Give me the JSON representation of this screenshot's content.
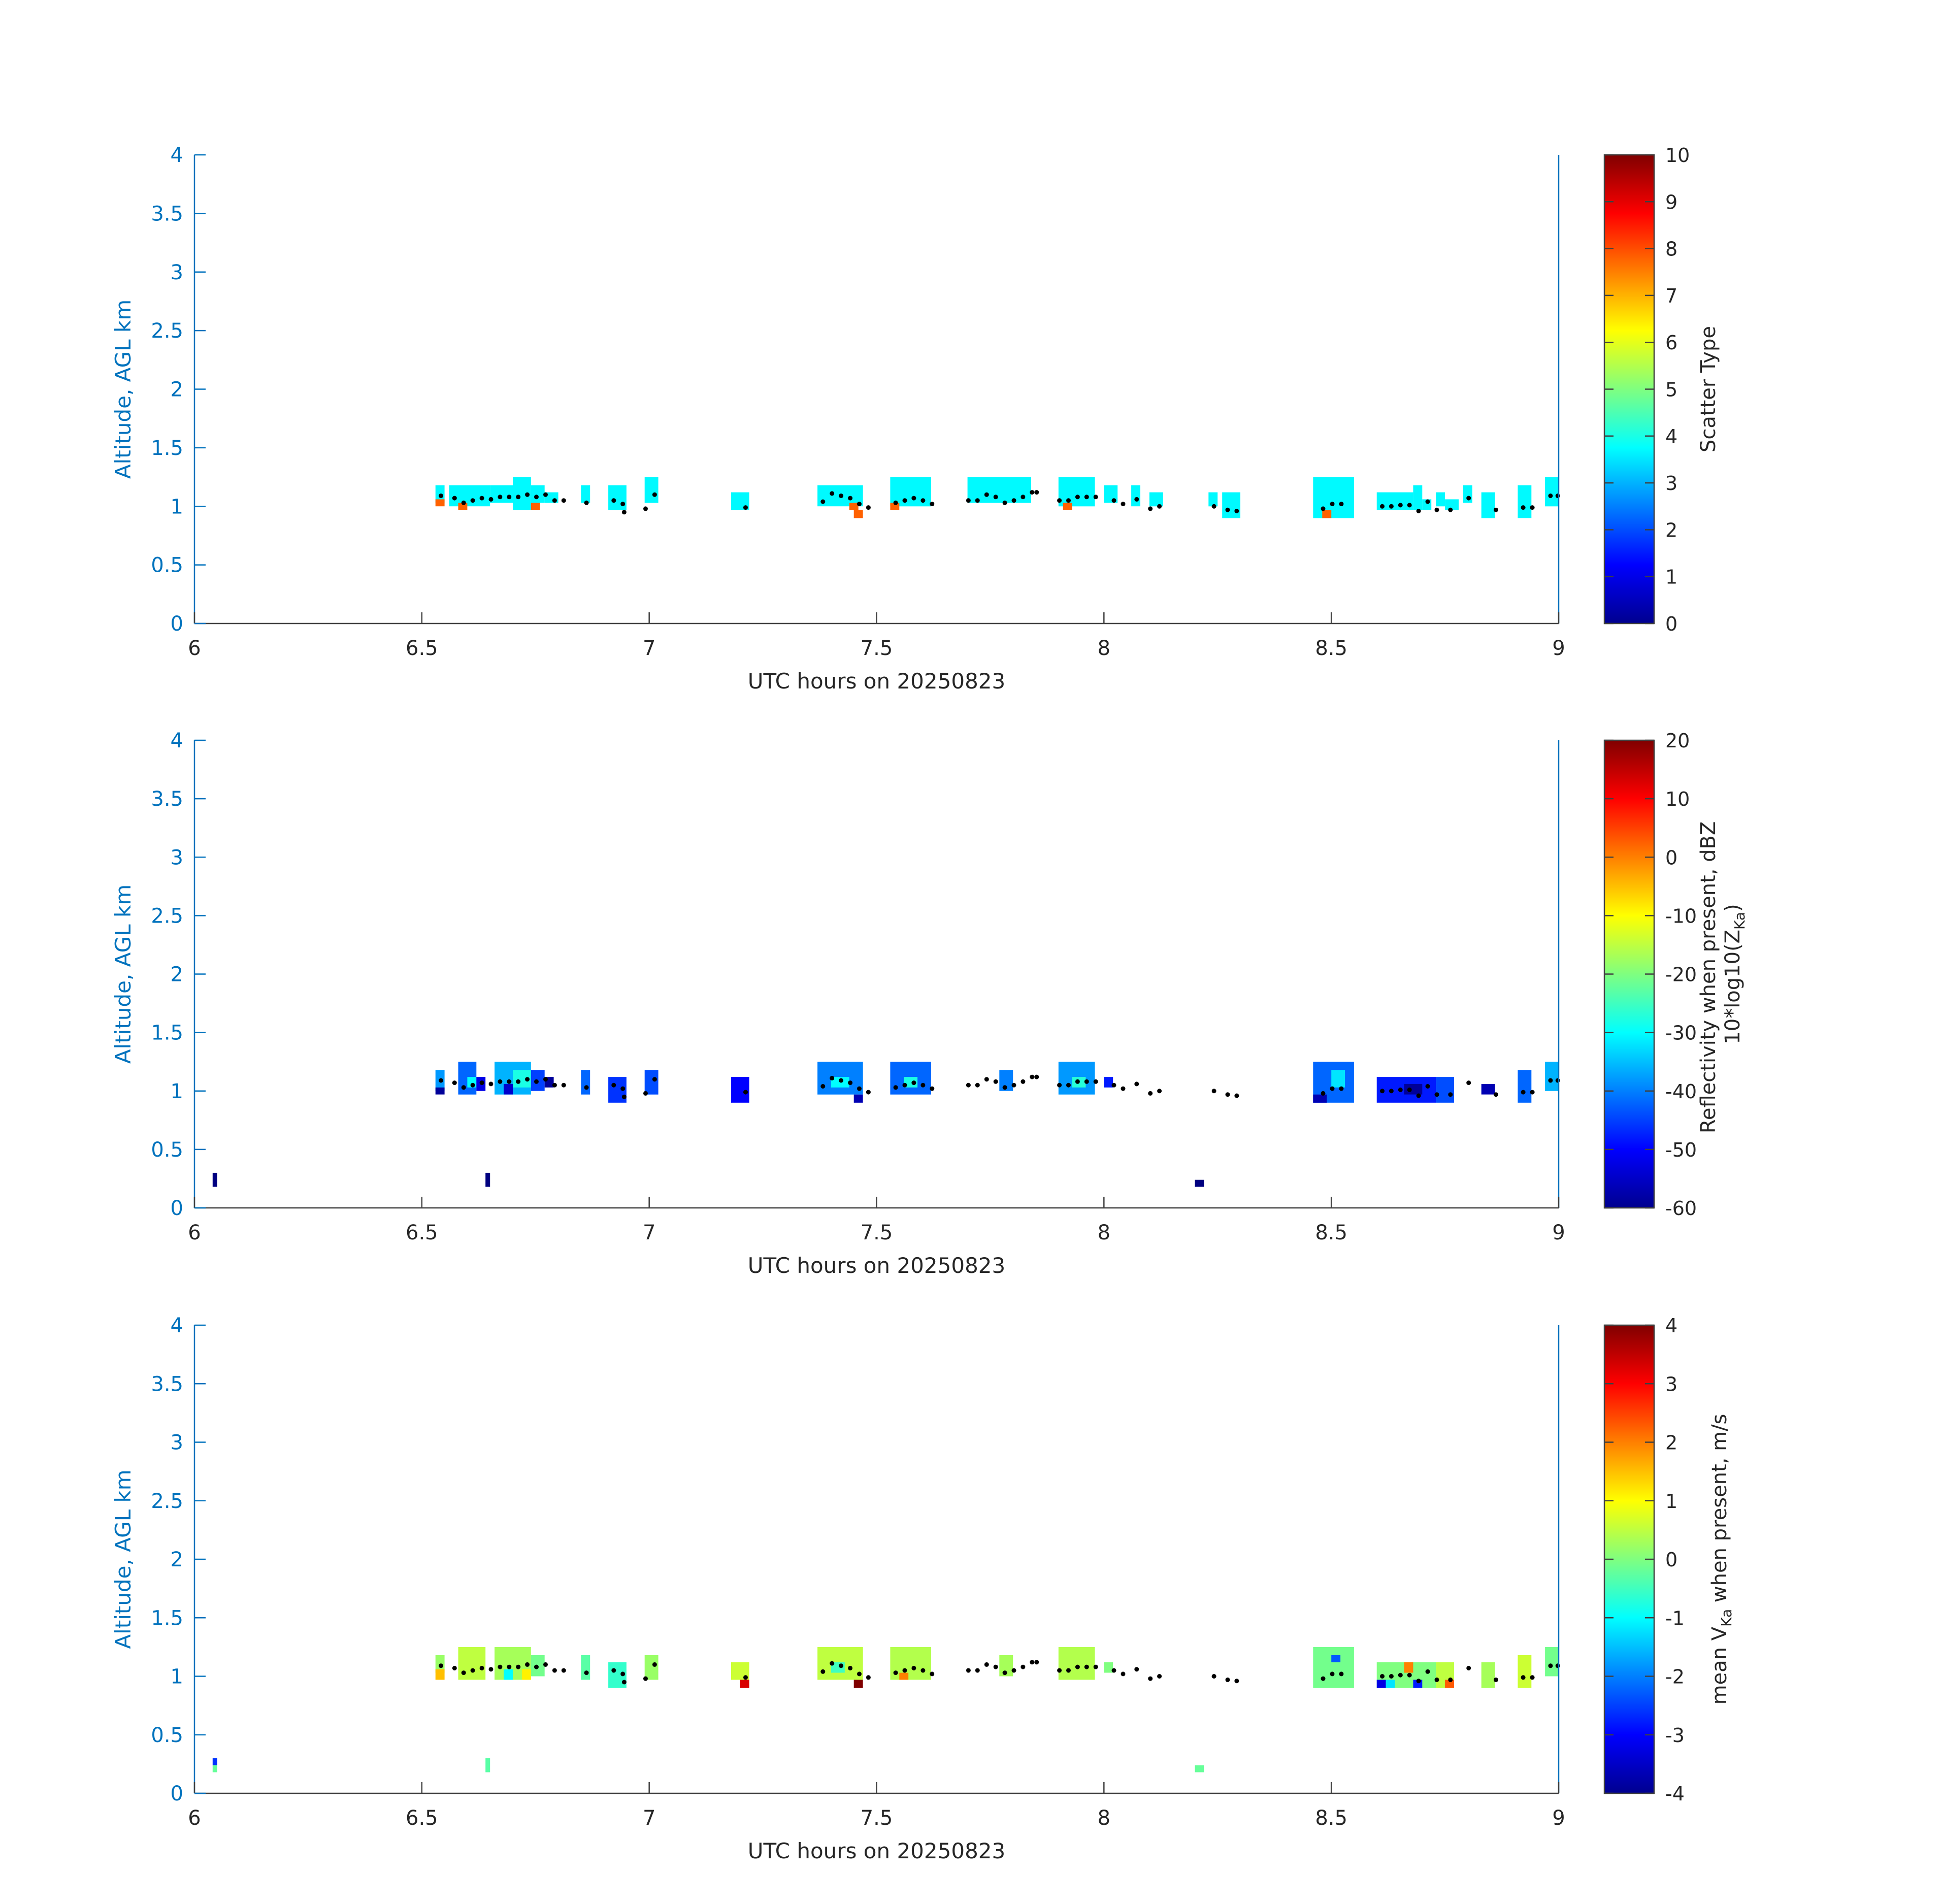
{
  "figure": {
    "panel_count": 3
  },
  "chart_data": [
    {
      "type": "heatmap",
      "title": "",
      "xlabel": "UTC hours on 20250823",
      "ylabel": "Altitude, AGL km",
      "xlim": [
        6,
        9
      ],
      "ylim": [
        0,
        4
      ],
      "xticks": [
        "6",
        "6.5",
        "7",
        "7.5",
        "8",
        "8.5",
        "9"
      ],
      "yticks": [
        "0",
        "0.5",
        "1",
        "1.5",
        "2",
        "2.5",
        "3",
        "3.5",
        "4"
      ],
      "colorbar": {
        "label_lines": [
          "Scatter Type"
        ],
        "range": [
          0,
          10
        ],
        "ticks": [
          "0",
          "1",
          "2",
          "3",
          "4",
          "5",
          "6",
          "7",
          "8",
          "9",
          "10"
        ]
      },
      "cells": [
        {
          "t0": 6.53,
          "t1": 6.55,
          "z0": 1.03,
          "z1": 1.18,
          "v": 3.7
        },
        {
          "t0": 6.53,
          "t1": 6.55,
          "z0": 1.0,
          "z1": 1.06,
          "v": 7.8
        },
        {
          "t0": 6.56,
          "t1": 6.65,
          "z0": 1.0,
          "z1": 1.18,
          "v": 3.7
        },
        {
          "t0": 6.58,
          "t1": 6.6,
          "z0": 0.97,
          "z1": 1.03,
          "v": 7.8
        },
        {
          "t0": 6.65,
          "t1": 6.72,
          "z0": 1.03,
          "z1": 1.18,
          "v": 3.7
        },
        {
          "t0": 6.7,
          "t1": 6.74,
          "z0": 0.97,
          "z1": 1.25,
          "v": 3.7
        },
        {
          "t0": 6.74,
          "t1": 6.77,
          "z0": 1.03,
          "z1": 1.18,
          "v": 3.7
        },
        {
          "t0": 6.74,
          "t1": 6.76,
          "z0": 0.97,
          "z1": 1.03,
          "v": 7.8
        },
        {
          "t0": 6.77,
          "t1": 6.8,
          "z0": 1.03,
          "z1": 1.12,
          "v": 3.7
        },
        {
          "t0": 6.85,
          "t1": 6.87,
          "z0": 1.03,
          "z1": 1.18,
          "v": 3.7
        },
        {
          "t0": 6.91,
          "t1": 6.95,
          "z0": 0.97,
          "z1": 1.18,
          "v": 3.7
        },
        {
          "t0": 6.99,
          "t1": 7.02,
          "z0": 1.03,
          "z1": 1.25,
          "v": 3.7
        },
        {
          "t0": 7.18,
          "t1": 7.22,
          "z0": 0.97,
          "z1": 1.12,
          "v": 3.7
        },
        {
          "t0": 7.37,
          "t1": 7.47,
          "z0": 1.0,
          "z1": 1.18,
          "v": 3.7
        },
        {
          "t0": 7.44,
          "t1": 7.46,
          "z0": 0.97,
          "z1": 1.03,
          "v": 7.8
        },
        {
          "t0": 7.45,
          "t1": 7.47,
          "z0": 0.9,
          "z1": 0.97,
          "v": 7.8
        },
        {
          "t0": 7.53,
          "t1": 7.62,
          "z0": 1.0,
          "z1": 1.25,
          "v": 3.7
        },
        {
          "t0": 7.53,
          "t1": 7.55,
          "z0": 0.97,
          "z1": 1.03,
          "v": 7.8
        },
        {
          "t0": 7.7,
          "t1": 7.84,
          "z0": 1.03,
          "z1": 1.25,
          "v": 3.7
        },
        {
          "t0": 7.9,
          "t1": 7.98,
          "z0": 1.0,
          "z1": 1.25,
          "v": 3.7
        },
        {
          "t0": 7.91,
          "t1": 7.93,
          "z0": 0.97,
          "z1": 1.03,
          "v": 7.8
        },
        {
          "t0": 8.0,
          "t1": 8.03,
          "z0": 1.03,
          "z1": 1.18,
          "v": 3.7
        },
        {
          "t0": 8.06,
          "t1": 8.08,
          "z0": 1.0,
          "z1": 1.18,
          "v": 3.7
        },
        {
          "t0": 8.1,
          "t1": 8.13,
          "z0": 1.0,
          "z1": 1.12,
          "v": 3.7
        },
        {
          "t0": 8.23,
          "t1": 8.25,
          "z0": 1.0,
          "z1": 1.12,
          "v": 3.7
        },
        {
          "t0": 8.26,
          "t1": 8.3,
          "z0": 0.9,
          "z1": 1.12,
          "v": 3.7
        },
        {
          "t0": 8.46,
          "t1": 8.55,
          "z0": 0.9,
          "z1": 1.25,
          "v": 3.7
        },
        {
          "t0": 8.48,
          "t1": 8.5,
          "z0": 0.9,
          "z1": 0.97,
          "v": 7.8
        },
        {
          "t0": 8.6,
          "t1": 8.68,
          "z0": 0.97,
          "z1": 1.12,
          "v": 3.7
        },
        {
          "t0": 8.68,
          "t1": 8.7,
          "z0": 0.97,
          "z1": 1.18,
          "v": 3.7
        },
        {
          "t0": 8.7,
          "t1": 8.72,
          "z0": 0.97,
          "z1": 1.06,
          "v": 3.7
        },
        {
          "t0": 8.73,
          "t1": 8.75,
          "z0": 1.0,
          "z1": 1.12,
          "v": 3.7
        },
        {
          "t0": 8.75,
          "t1": 8.78,
          "z0": 0.97,
          "z1": 1.06,
          "v": 3.7
        },
        {
          "t0": 8.79,
          "t1": 8.81,
          "z0": 1.03,
          "z1": 1.18,
          "v": 3.7
        },
        {
          "t0": 8.83,
          "t1": 8.86,
          "z0": 0.9,
          "z1": 1.12,
          "v": 3.7
        },
        {
          "t0": 8.91,
          "t1": 8.94,
          "z0": 0.9,
          "z1": 1.18,
          "v": 3.7
        },
        {
          "t0": 8.97,
          "t1": 9.0,
          "z0": 1.0,
          "z1": 1.25,
          "v": 3.7
        }
      ]
    },
    {
      "type": "heatmap",
      "title": "",
      "xlabel": "UTC hours on 20250823",
      "ylabel": "Altitude, AGL km",
      "xlim": [
        6,
        9
      ],
      "ylim": [
        0,
        4
      ],
      "xticks": [
        "6",
        "6.5",
        "7",
        "7.5",
        "8",
        "8.5",
        "9"
      ],
      "yticks": [
        "0",
        "0.5",
        "1",
        "1.5",
        "2",
        "2.5",
        "3",
        "3.5",
        "4"
      ],
      "colorbar": {
        "label_lines": [
          "Reflectivity when present, dBZ",
          "10*log10(Z",
          "Ka",
          ")"
        ],
        "range": [
          -60,
          20
        ],
        "ticks": [
          "-60",
          "-50",
          "-40",
          "-30",
          "-20",
          "-10",
          "0",
          "10",
          "20"
        ]
      },
      "cells": [
        {
          "t0": 6.04,
          "t1": 6.05,
          "z0": 0.18,
          "z1": 0.3,
          "v": -60
        },
        {
          "t0": 6.64,
          "t1": 6.65,
          "z0": 0.18,
          "z1": 0.3,
          "v": -60
        },
        {
          "t0": 8.2,
          "t1": 8.22,
          "z0": 0.18,
          "z1": 0.24,
          "v": -60
        },
        {
          "t0": 6.53,
          "t1": 6.55,
          "z0": 1.0,
          "z1": 1.18,
          "v": -38
        },
        {
          "t0": 6.53,
          "t1": 6.55,
          "z0": 0.97,
          "z1": 1.03,
          "v": -58
        },
        {
          "t0": 6.58,
          "t1": 6.62,
          "z0": 0.97,
          "z1": 1.25,
          "v": -42
        },
        {
          "t0": 6.6,
          "t1": 6.62,
          "z0": 1.03,
          "z1": 1.12,
          "v": -30
        },
        {
          "t0": 6.62,
          "t1": 6.64,
          "z0": 1.0,
          "z1": 1.12,
          "v": -52
        },
        {
          "t0": 6.66,
          "t1": 6.74,
          "z0": 0.97,
          "z1": 1.25,
          "v": -36
        },
        {
          "t0": 6.68,
          "t1": 6.7,
          "z0": 0.97,
          "z1": 1.06,
          "v": -54
        },
        {
          "t0": 6.7,
          "t1": 6.74,
          "z0": 1.03,
          "z1": 1.18,
          "v": -28
        },
        {
          "t0": 6.74,
          "t1": 6.77,
          "z0": 1.0,
          "z1": 1.18,
          "v": -45
        },
        {
          "t0": 6.77,
          "t1": 6.79,
          "z0": 1.03,
          "z1": 1.12,
          "v": -58
        },
        {
          "t0": 6.85,
          "t1": 6.87,
          "z0": 0.97,
          "z1": 1.18,
          "v": -42
        },
        {
          "t0": 6.91,
          "t1": 6.95,
          "z0": 0.9,
          "z1": 1.12,
          "v": -46
        },
        {
          "t0": 6.99,
          "t1": 7.02,
          "z0": 0.97,
          "z1": 1.18,
          "v": -44
        },
        {
          "t0": 7.18,
          "t1": 7.22,
          "z0": 0.9,
          "z1": 1.12,
          "v": -50
        },
        {
          "t0": 7.37,
          "t1": 7.47,
          "z0": 0.97,
          "z1": 1.25,
          "v": -40
        },
        {
          "t0": 7.4,
          "t1": 7.44,
          "z0": 1.03,
          "z1": 1.12,
          "v": -30
        },
        {
          "t0": 7.45,
          "t1": 7.47,
          "z0": 0.9,
          "z1": 0.97,
          "v": -56
        },
        {
          "t0": 7.53,
          "t1": 7.62,
          "z0": 0.97,
          "z1": 1.25,
          "v": -42
        },
        {
          "t0": 7.56,
          "t1": 7.59,
          "z0": 1.03,
          "z1": 1.12,
          "v": -28
        },
        {
          "t0": 7.77,
          "t1": 7.8,
          "z0": 1.0,
          "z1": 1.18,
          "v": -40
        },
        {
          "t0": 7.9,
          "t1": 7.98,
          "z0": 0.97,
          "z1": 1.25,
          "v": -38
        },
        {
          "t0": 7.93,
          "t1": 7.96,
          "z0": 1.03,
          "z1": 1.12,
          "v": -27
        },
        {
          "t0": 8.0,
          "t1": 8.02,
          "z0": 1.03,
          "z1": 1.12,
          "v": -48
        },
        {
          "t0": 8.46,
          "t1": 8.55,
          "z0": 0.9,
          "z1": 1.25,
          "v": -42
        },
        {
          "t0": 8.5,
          "t1": 8.53,
          "z0": 1.03,
          "z1": 1.18,
          "v": -32
        },
        {
          "t0": 8.46,
          "t1": 8.49,
          "z0": 0.9,
          "z1": 0.97,
          "v": -56
        },
        {
          "t0": 8.6,
          "t1": 8.73,
          "z0": 0.9,
          "z1": 1.12,
          "v": -48
        },
        {
          "t0": 8.66,
          "t1": 8.7,
          "z0": 0.97,
          "z1": 1.06,
          "v": -58
        },
        {
          "t0": 8.73,
          "t1": 8.77,
          "z0": 0.9,
          "z1": 1.12,
          "v": -44
        },
        {
          "t0": 8.83,
          "t1": 8.86,
          "z0": 0.97,
          "z1": 1.06,
          "v": -56
        },
        {
          "t0": 8.91,
          "t1": 8.94,
          "z0": 0.9,
          "z1": 1.18,
          "v": -42
        },
        {
          "t0": 8.97,
          "t1": 9.0,
          "z0": 1.0,
          "z1": 1.25,
          "v": -36
        }
      ]
    },
    {
      "type": "heatmap",
      "title": "",
      "xlabel": "UTC hours on 20250823",
      "ylabel": "Altitude, AGL km",
      "xlim": [
        6,
        9
      ],
      "ylim": [
        0,
        4
      ],
      "xticks": [
        "6",
        "6.5",
        "7",
        "7.5",
        "8",
        "8.5",
        "9"
      ],
      "yticks": [
        "0",
        "0.5",
        "1",
        "1.5",
        "2",
        "2.5",
        "3",
        "3.5",
        "4"
      ],
      "colorbar": {
        "label_lines": [
          "mean V",
          "Ka",
          " when present, m/s"
        ],
        "range": [
          -4,
          4
        ],
        "ticks": [
          "-4",
          "-3",
          "-2",
          "-1",
          "0",
          "1",
          "2",
          "3",
          "4"
        ]
      },
      "cells": [
        {
          "t0": 6.04,
          "t1": 6.05,
          "z0": 0.24,
          "z1": 0.3,
          "v": -2.6
        },
        {
          "t0": 6.04,
          "t1": 6.05,
          "z0": 0.18,
          "z1": 0.24,
          "v": -0.2
        },
        {
          "t0": 6.64,
          "t1": 6.65,
          "z0": 0.18,
          "z1": 0.3,
          "v": -0.3
        },
        {
          "t0": 8.2,
          "t1": 8.22,
          "z0": 0.18,
          "z1": 0.24,
          "v": -0.2
        },
        {
          "t0": 6.53,
          "t1": 6.55,
          "z0": 1.03,
          "z1": 1.18,
          "v": 0.2
        },
        {
          "t0": 6.53,
          "t1": 6.55,
          "z0": 0.97,
          "z1": 1.06,
          "v": 1.5
        },
        {
          "t0": 6.58,
          "t1": 6.64,
          "z0": 0.97,
          "z1": 1.25,
          "v": 0.5
        },
        {
          "t0": 6.66,
          "t1": 6.74,
          "z0": 0.97,
          "z1": 1.25,
          "v": 0.3
        },
        {
          "t0": 6.68,
          "t1": 6.7,
          "z0": 0.97,
          "z1": 1.06,
          "v": -1.0
        },
        {
          "t0": 6.72,
          "t1": 6.74,
          "z0": 0.97,
          "z1": 1.06,
          "v": 1.1
        },
        {
          "t0": 6.74,
          "t1": 6.77,
          "z0": 1.0,
          "z1": 1.18,
          "v": -0.1
        },
        {
          "t0": 6.85,
          "t1": 6.87,
          "z0": 0.97,
          "z1": 1.18,
          "v": -0.3
        },
        {
          "t0": 6.91,
          "t1": 6.95,
          "z0": 0.9,
          "z1": 1.12,
          "v": -0.6
        },
        {
          "t0": 6.99,
          "t1": 7.02,
          "z0": 0.97,
          "z1": 1.18,
          "v": 0.2
        },
        {
          "t0": 7.18,
          "t1": 7.22,
          "z0": 0.97,
          "z1": 1.12,
          "v": 0.6
        },
        {
          "t0": 7.2,
          "t1": 7.22,
          "z0": 0.9,
          "z1": 0.97,
          "v": 3.3
        },
        {
          "t0": 7.37,
          "t1": 7.47,
          "z0": 0.97,
          "z1": 1.25,
          "v": 0.5
        },
        {
          "t0": 7.4,
          "t1": 7.43,
          "z0": 1.03,
          "z1": 1.12,
          "v": -0.5
        },
        {
          "t0": 7.45,
          "t1": 7.47,
          "z0": 0.9,
          "z1": 0.97,
          "v": 4.0
        },
        {
          "t0": 7.53,
          "t1": 7.62,
          "z0": 0.97,
          "z1": 1.25,
          "v": 0.4
        },
        {
          "t0": 7.55,
          "t1": 7.57,
          "z0": 0.97,
          "z1": 1.03,
          "v": 2.0
        },
        {
          "t0": 7.77,
          "t1": 7.8,
          "z0": 1.0,
          "z1": 1.18,
          "v": 0.3
        },
        {
          "t0": 7.9,
          "t1": 7.98,
          "z0": 0.97,
          "z1": 1.25,
          "v": 0.4
        },
        {
          "t0": 8.0,
          "t1": 8.02,
          "z0": 1.03,
          "z1": 1.12,
          "v": 0.0
        },
        {
          "t0": 8.46,
          "t1": 8.55,
          "z0": 0.9,
          "z1": 1.25,
          "v": -0.1
        },
        {
          "t0": 8.5,
          "t1": 8.52,
          "z0": 1.12,
          "z1": 1.18,
          "v": -2.3
        },
        {
          "t0": 8.6,
          "t1": 8.73,
          "z0": 0.9,
          "z1": 1.12,
          "v": 0.0
        },
        {
          "t0": 8.6,
          "t1": 8.62,
          "z0": 0.9,
          "z1": 0.97,
          "v": -3.2
        },
        {
          "t0": 8.62,
          "t1": 8.64,
          "z0": 0.9,
          "z1": 0.97,
          "v": -1.2
        },
        {
          "t0": 8.66,
          "t1": 8.68,
          "z0": 1.03,
          "z1": 1.12,
          "v": 2.0
        },
        {
          "t0": 8.68,
          "t1": 8.7,
          "z0": 0.9,
          "z1": 0.97,
          "v": -2.8
        },
        {
          "t0": 8.73,
          "t1": 8.77,
          "z0": 0.9,
          "z1": 1.12,
          "v": 0.5
        },
        {
          "t0": 8.75,
          "t1": 8.77,
          "z0": 0.9,
          "z1": 0.97,
          "v": 2.3
        },
        {
          "t0": 8.83,
          "t1": 8.86,
          "z0": 0.9,
          "z1": 1.12,
          "v": 0.3
        },
        {
          "t0": 8.91,
          "t1": 8.94,
          "z0": 0.9,
          "z1": 1.18,
          "v": 0.6
        },
        {
          "t0": 8.97,
          "t1": 9.0,
          "z0": 1.0,
          "z1": 1.25,
          "v": -0.1
        }
      ]
    }
  ],
  "cloud_base_points": [
    [
      6.542,
      1.09
    ],
    [
      6.572,
      1.07
    ],
    [
      6.592,
      1.03
    ],
    [
      6.612,
      1.05
    ],
    [
      6.632,
      1.07
    ],
    [
      6.652,
      1.06
    ],
    [
      6.672,
      1.08
    ],
    [
      6.692,
      1.08
    ],
    [
      6.712,
      1.08
    ],
    [
      6.732,
      1.1
    ],
    [
      6.752,
      1.08
    ],
    [
      6.772,
      1.1
    ],
    [
      6.792,
      1.05
    ],
    [
      6.812,
      1.05
    ],
    [
      6.862,
      1.03
    ],
    [
      6.922,
      1.05
    ],
    [
      6.942,
      1.02
    ],
    [
      6.945,
      0.95
    ],
    [
      6.992,
      0.98
    ],
    [
      7.012,
      1.1
    ],
    [
      7.212,
      0.99
    ],
    [
      7.382,
      1.04
    ],
    [
      7.402,
      1.11
    ],
    [
      7.422,
      1.09
    ],
    [
      7.442,
      1.07
    ],
    [
      7.462,
      1.02
    ],
    [
      7.482,
      0.99
    ],
    [
      7.542,
      1.03
    ],
    [
      7.562,
      1.05
    ],
    [
      7.582,
      1.07
    ],
    [
      7.602,
      1.05
    ],
    [
      7.622,
      1.02
    ],
    [
      7.702,
      1.05
    ],
    [
      7.722,
      1.05
    ],
    [
      7.742,
      1.1
    ],
    [
      7.762,
      1.08
    ],
    [
      7.782,
      1.03
    ],
    [
      7.802,
      1.05
    ],
    [
      7.822,
      1.08
    ],
    [
      7.842,
      1.12
    ],
    [
      7.852,
      1.12
    ],
    [
      7.902,
      1.05
    ],
    [
      7.922,
      1.05
    ],
    [
      7.942,
      1.08
    ],
    [
      7.962,
      1.08
    ],
    [
      7.982,
      1.08
    ],
    [
      8.022,
      1.05
    ],
    [
      8.042,
      1.02
    ],
    [
      8.072,
      1.06
    ],
    [
      8.102,
      0.98
    ],
    [
      8.122,
      1.0
    ],
    [
      8.242,
      1.0
    ],
    [
      8.272,
      0.97
    ],
    [
      8.292,
      0.96
    ],
    [
      8.482,
      0.98
    ],
    [
      8.502,
      1.02
    ],
    [
      8.522,
      1.02
    ],
    [
      8.612,
      1.0
    ],
    [
      8.632,
      1.0
    ],
    [
      8.652,
      1.01
    ],
    [
      8.672,
      1.01
    ],
    [
      8.692,
      0.96
    ],
    [
      8.712,
      1.04
    ],
    [
      8.732,
      0.97
    ],
    [
      8.762,
      0.97
    ],
    [
      8.802,
      1.07
    ],
    [
      8.862,
      0.97
    ],
    [
      8.922,
      0.99
    ],
    [
      8.942,
      0.99
    ],
    [
      8.982,
      1.09
    ],
    [
      8.998,
      1.09
    ]
  ],
  "colors": {
    "axis_color": "#0072bd",
    "text_color": "#262626",
    "tick_color": "#404040",
    "background": "#ffffff"
  }
}
